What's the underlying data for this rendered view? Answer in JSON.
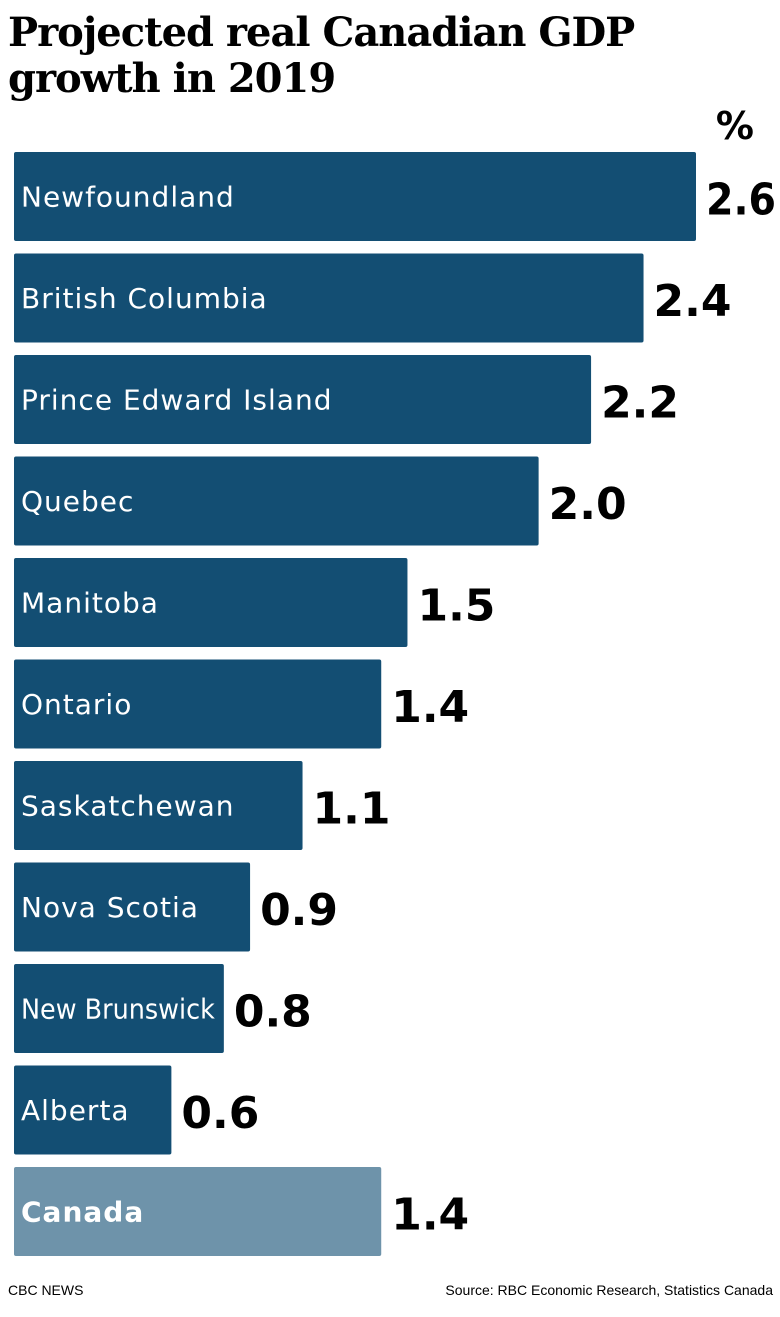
{
  "header": {
    "title": "Projected real Canadian GDP growth in 2019",
    "unit": "%"
  },
  "footer": {
    "credit": "CBC NEWS",
    "source": "Source: RBC Economic Research, Statistics Canada"
  },
  "colors": {
    "bar": "#134e73",
    "highlight_bar": "#6e93aa",
    "bar_text": "#ffffff",
    "value_text": "#000000"
  },
  "chart_data": {
    "type": "bar",
    "orientation": "horizontal",
    "title": "Projected real Canadian GDP growth in 2019",
    "unit": "%",
    "categories": [
      "Newfoundland",
      "British Columbia",
      "Prince Edward Island",
      "Quebec",
      "Manitoba",
      "Ontario",
      "Saskatchewan",
      "Nova Scotia",
      "New Brunswick",
      "Alberta",
      "Canada"
    ],
    "values": [
      2.6,
      2.4,
      2.2,
      2.0,
      1.5,
      1.4,
      1.1,
      0.9,
      0.8,
      0.6,
      1.4
    ],
    "value_labels": [
      "2.6",
      "2.4",
      "2.2",
      "2.0",
      "1.5",
      "1.4",
      "1.1",
      "0.9",
      "0.8",
      "0.6",
      "1.4"
    ],
    "highlight": [
      "Canada"
    ],
    "xlim": [
      0,
      2.6
    ],
    "grid": false,
    "legend": "none"
  }
}
